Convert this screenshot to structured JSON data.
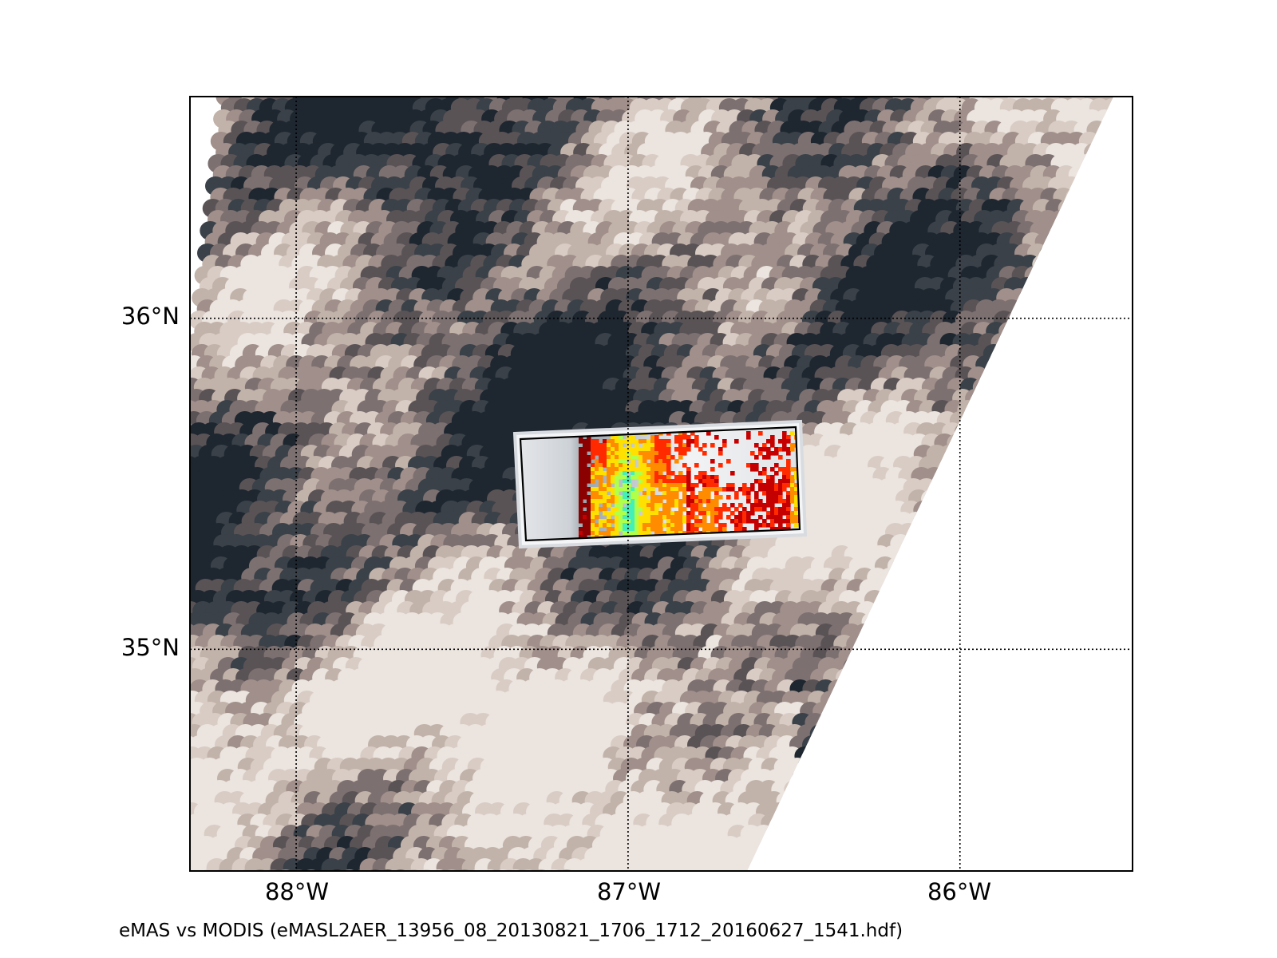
{
  "figure": {
    "caption": "eMAS vs MODIS (eMASL2AER_13956_08_20130821_1706_1712_20160627_1541.hdf)"
  },
  "map": {
    "lat_labels": [
      "36°N",
      "35°N"
    ],
    "lon_labels": [
      "88°W",
      "87°W",
      "86°W"
    ],
    "lat_values": [
      36,
      35
    ],
    "lon_values": [
      -88,
      -87,
      -86
    ],
    "lon_range": [
      -88.32,
      -85.48
    ],
    "lat_range": [
      34.33,
      36.67
    ],
    "gridlines": "dotted",
    "colors": {
      "modis_swath": [
        "#1e2630",
        "#3a4148",
        "#5a5356",
        "#7d7070",
        "#a08f8a",
        "#c2b3aa",
        "#d9ccc4",
        "#ebe4df"
      ],
      "emas_cloud": "#e4e6e9",
      "emas_aerosol": [
        "#8b0000",
        "#c40000",
        "#ff2a00",
        "#ff8c00",
        "#ffe000",
        "#b0ff4a",
        "#44f0b8"
      ]
    }
  }
}
